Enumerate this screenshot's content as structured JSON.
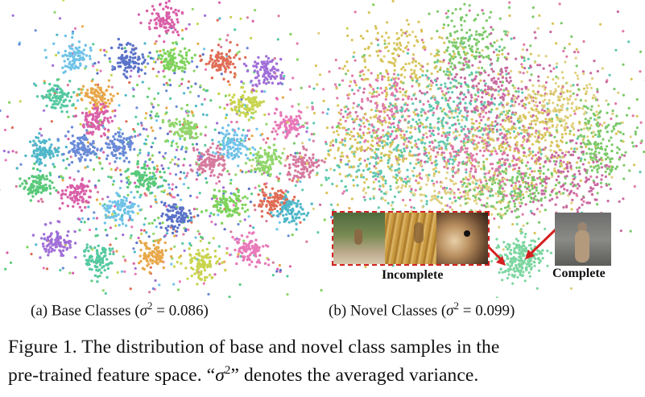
{
  "panel_a": {
    "caption_prefix": "(a)  Base Classes (",
    "sigma_symbol": "σ",
    "sigma_sup": "2",
    "caption_suffix": " = 0.086)"
  },
  "panel_b": {
    "caption_prefix": "(b)  Novel Classes (",
    "sigma_symbol": "σ",
    "sigma_sup": "2",
    "caption_suffix": " = 0.099)",
    "label_incomplete": "Incomplete",
    "label_complete": "Complete"
  },
  "figure_caption": {
    "line1": "Figure 1. The distribution of base and novel class samples in the",
    "line2_pre": "pre-trained feature space. “",
    "line2_sigma": "σ",
    "line2_sup": "2",
    "line2_post": "” denotes the averaged variance."
  },
  "colors": {
    "base": [
      "#d95fa8",
      "#6fc3e8",
      "#5a72c8",
      "#7dd35a",
      "#e06d56",
      "#a06fd8",
      "#55c9a0",
      "#e8a84a",
      "#c9d44e",
      "#e879b8",
      "#4fb7c9",
      "#6a8bd8",
      "#91d66b",
      "#d67a9e",
      "#59c97a"
    ],
    "novel": [
      "#7cc96a",
      "#d8c45a",
      "#e07aa8",
      "#5fc8b0",
      "#c86aa0",
      "#e0d080"
    ],
    "arrow": "#d42020"
  }
}
